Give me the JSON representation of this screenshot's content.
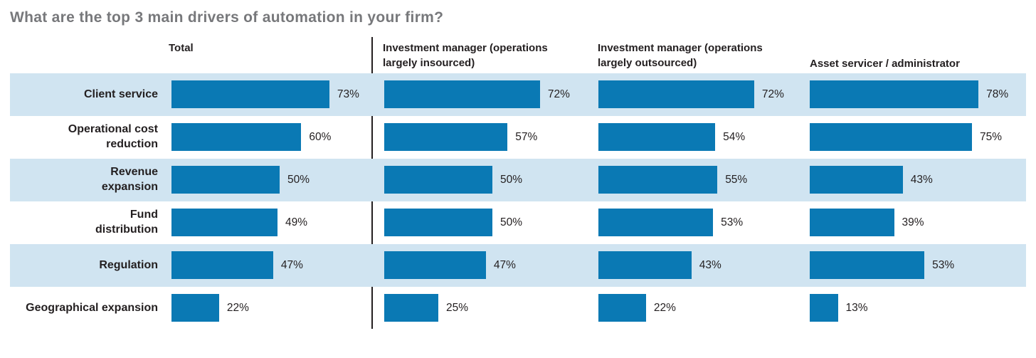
{
  "title": "What are the top 3 main drivers of automation in your firm?",
  "colors": {
    "bar": "#0a79b4",
    "band": "#d0e4f1",
    "title": "#77787b",
    "divider": "#231f20",
    "text": "#231f20"
  },
  "chart_data": {
    "type": "bar",
    "orientation": "horizontal",
    "title": "What are the top 3 main drivers of automation in your firm?",
    "unit": "%",
    "xlim": [
      0,
      100
    ],
    "value_labels": true,
    "striped_rows": true,
    "grid": false,
    "legend_position": "column-headers-top",
    "categories": [
      "Client service",
      "Operational cost\nreduction",
      "Revenue\nexpansion",
      "Fund\ndistribution",
      "Regulation",
      "Geographical expansion"
    ],
    "series": [
      {
        "name": "Total",
        "values": [
          73,
          60,
          50,
          49,
          47,
          22
        ]
      },
      {
        "name": "Investment manager (operations largely insourced)",
        "values": [
          72,
          57,
          50,
          50,
          47,
          25
        ]
      },
      {
        "name": "Investment manager (operations largely outsourced)",
        "values": [
          72,
          54,
          55,
          53,
          43,
          22
        ]
      },
      {
        "name": "Asset servicer / administrator",
        "values": [
          78,
          75,
          43,
          39,
          53,
          13
        ]
      }
    ]
  }
}
